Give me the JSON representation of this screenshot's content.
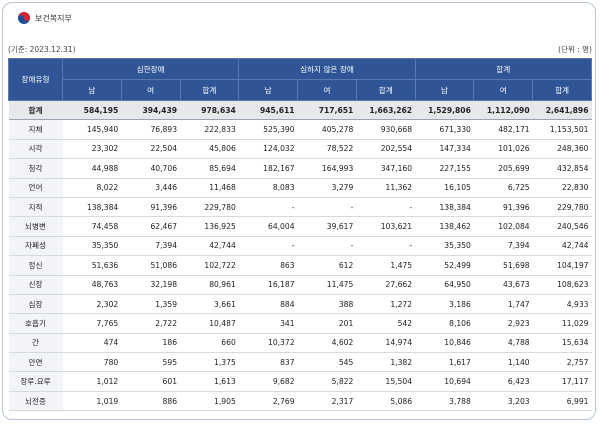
{
  "header": {
    "logo": "보건복지부",
    "base_date": "(기준: 2023.12.31)",
    "unit": "(단위 : 명)"
  },
  "table": {
    "corner": "장애유형",
    "groups": [
      "심한장애",
      "심하지 않은 장애",
      "합계"
    ],
    "subheaders": [
      "남",
      "여",
      "합계",
      "남",
      "여",
      "합계",
      "남",
      "여",
      "합계"
    ],
    "rows": [
      [
        "합계",
        "584,195",
        "394,439",
        "978,634",
        "945,611",
        "717,651",
        "1,663,262",
        "1,529,806",
        "1,112,090",
        "2,641,896"
      ],
      [
        "지체",
        "145,940",
        "76,893",
        "222,833",
        "525,390",
        "405,278",
        "930,668",
        "671,330",
        "482,171",
        "1,153,501"
      ],
      [
        "시각",
        "23,302",
        "22,504",
        "45,806",
        "124,032",
        "78,522",
        "202,554",
        "147,334",
        "101,026",
        "248,360"
      ],
      [
        "청각",
        "44,988",
        "40,706",
        "85,694",
        "182,167",
        "164,993",
        "347,160",
        "227,155",
        "205,699",
        "432,854"
      ],
      [
        "언어",
        "8,022",
        "3,446",
        "11,468",
        "8,083",
        "3,279",
        "11,362",
        "16,105",
        "6,725",
        "22,830"
      ],
      [
        "지적",
        "138,384",
        "91,396",
        "229,780",
        "-",
        "-",
        "-",
        "138,384",
        "91,396",
        "229,780"
      ],
      [
        "뇌병변",
        "74,458",
        "62,467",
        "136,925",
        "64,004",
        "39,617",
        "103,621",
        "138,462",
        "102,084",
        "240,546"
      ],
      [
        "자폐성",
        "35,350",
        "7,394",
        "42,744",
        "-",
        "-",
        "-",
        "35,350",
        "7,394",
        "42,744"
      ],
      [
        "정신",
        "51,636",
        "51,086",
        "102,722",
        "863",
        "612",
        "1,475",
        "52,499",
        "51,698",
        "104,197"
      ],
      [
        "신장",
        "48,763",
        "32,198",
        "80,961",
        "16,187",
        "11,475",
        "27,662",
        "64,950",
        "43,673",
        "108,623"
      ],
      [
        "심장",
        "2,302",
        "1,359",
        "3,661",
        "884",
        "388",
        "1,272",
        "3,186",
        "1,747",
        "4,933"
      ],
      [
        "호흡기",
        "7,765",
        "2,722",
        "10,487",
        "341",
        "201",
        "542",
        "8,106",
        "2,923",
        "11,029"
      ],
      [
        "간",
        "474",
        "186",
        "660",
        "10,372",
        "4,602",
        "14,974",
        "10,846",
        "4,788",
        "15,634"
      ],
      [
        "안면",
        "780",
        "595",
        "1,375",
        "837",
        "545",
        "1,382",
        "1,617",
        "1,140",
        "2,757"
      ],
      [
        "장루.요루",
        "1,012",
        "601",
        "1,613",
        "9,682",
        "5,822",
        "15,504",
        "10,694",
        "6,423",
        "17,117"
      ],
      [
        "뇌전증",
        "1,019",
        "886",
        "1,905",
        "2,769",
        "2,317",
        "5,086",
        "3,788",
        "3,203",
        "6,991"
      ]
    ]
  }
}
